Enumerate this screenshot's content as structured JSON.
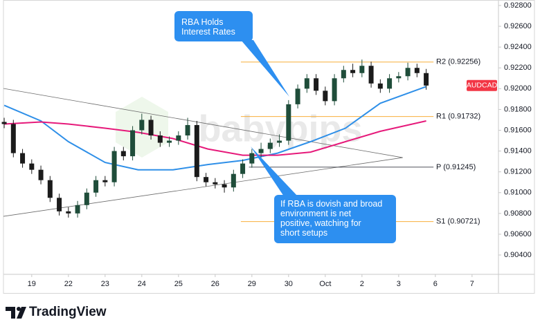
{
  "chart_data": {
    "type": "candlestick",
    "symbol": "AUDCAD",
    "watermark": "babypips",
    "branding": "TradingView",
    "xlim": [
      -0.77,
      12.72
    ],
    "xticks": [
      {
        "value": 0,
        "label": "19"
      },
      {
        "value": 1,
        "label": "22"
      },
      {
        "value": 2,
        "label": "23"
      },
      {
        "value": 3,
        "label": "24"
      },
      {
        "value": 4,
        "label": "25"
      },
      {
        "value": 5,
        "label": "26"
      },
      {
        "value": 6,
        "label": "29"
      },
      {
        "value": 7,
        "label": "30"
      },
      {
        "value": 8,
        "label": "Oct"
      },
      {
        "value": 9,
        "label": "2"
      },
      {
        "value": 10,
        "label": "3"
      },
      {
        "value": 11,
        "label": "6"
      },
      {
        "value": 12,
        "label": "7"
      }
    ],
    "ylim": [
      0.90214,
      0.92853
    ],
    "yticks": [
      {
        "value": 0.904,
        "label": "0.90400"
      },
      {
        "value": 0.906,
        "label": "0.90600"
      },
      {
        "value": 0.908,
        "label": "0.90800"
      },
      {
        "value": 0.91,
        "label": "0.91000"
      },
      {
        "value": 0.912,
        "label": "0.91200"
      },
      {
        "value": 0.914,
        "label": "0.91400"
      },
      {
        "value": 0.916,
        "label": "0.91600"
      },
      {
        "value": 0.918,
        "label": "0.91800"
      },
      {
        "value": 0.92,
        "label": "0.92000"
      },
      {
        "value": 0.922,
        "label": "0.92200"
      },
      {
        "value": 0.924,
        "label": "0.92400"
      },
      {
        "value": 0.926,
        "label": "0.92600"
      },
      {
        "value": 0.928,
        "label": "0.92800"
      }
    ],
    "grid": false,
    "up_color": "#1f4d3a",
    "down_color": "#1b1b1b",
    "x": [
      -0.75,
      -0.5,
      -0.25,
      0,
      0.25,
      0.5,
      0.75,
      1,
      1.25,
      1.5,
      1.75,
      2,
      2.25,
      2.5,
      2.75,
      3,
      3.25,
      3.5,
      3.75,
      4,
      4.25,
      4.5,
      4.75,
      5,
      5.25,
      5.5,
      5.75,
      6,
      6.25,
      6.5,
      6.75,
      7,
      7.25,
      7.5,
      7.75,
      8,
      8.25,
      8.5,
      8.75,
      9,
      9.25,
      9.5,
      9.75,
      10,
      10.25,
      10.5,
      10.75
    ],
    "open": [
      0.9168,
      0.9166,
      0.9138,
      0.9128,
      0.9122,
      0.9112,
      0.9095,
      0.9082,
      0.908,
      0.9088,
      0.91,
      0.9112,
      0.911,
      0.914,
      0.9135,
      0.916,
      0.917,
      0.9155,
      0.9148,
      0.915,
      0.9155,
      0.9165,
      0.9115,
      0.911,
      0.9108,
      0.9105,
      0.9118,
      0.9128,
      0.9138,
      0.9142,
      0.9148,
      0.915,
      0.9185,
      0.92,
      0.921,
      0.9198,
      0.9188,
      0.921,
      0.9218,
      0.9215,
      0.9222,
      0.9205,
      0.92,
      0.921,
      0.9212,
      0.922,
      0.9215
    ],
    "high": [
      0.9172,
      0.917,
      0.9142,
      0.9132,
      0.9126,
      0.9116,
      0.9099,
      0.9086,
      0.9092,
      0.9104,
      0.9116,
      0.9116,
      0.9144,
      0.9144,
      0.9164,
      0.9176,
      0.9174,
      0.9159,
      0.9154,
      0.9159,
      0.9172,
      0.9169,
      0.9119,
      0.9114,
      0.9112,
      0.9122,
      0.9132,
      0.9142,
      0.9148,
      0.9152,
      0.9156,
      0.9189,
      0.9204,
      0.9214,
      0.9214,
      0.9202,
      0.9214,
      0.9222,
      0.9224,
      0.9228,
      0.9226,
      0.9209,
      0.9214,
      0.9216,
      0.9225,
      0.9224,
      0.9219
    ],
    "low": [
      0.9162,
      0.9134,
      0.9124,
      0.9118,
      0.9108,
      0.9091,
      0.9078,
      0.9076,
      0.9076,
      0.9084,
      0.9096,
      0.9106,
      0.9106,
      0.9131,
      0.9131,
      0.9156,
      0.9151,
      0.9144,
      0.9144,
      0.9146,
      0.9151,
      0.9111,
      0.9106,
      0.9104,
      0.91,
      0.9101,
      0.9114,
      0.9124,
      0.9134,
      0.9138,
      0.9144,
      0.9146,
      0.9181,
      0.9196,
      0.9194,
      0.9184,
      0.9184,
      0.9206,
      0.9211,
      0.9211,
      0.9201,
      0.9196,
      0.9196,
      0.9206,
      0.9208,
      0.9211,
      0.9199
    ],
    "close": [
      0.9166,
      0.9138,
      0.9128,
      0.9122,
      0.9112,
      0.9095,
      0.9082,
      0.908,
      0.9088,
      0.91,
      0.9112,
      0.911,
      0.914,
      0.9135,
      0.916,
      0.917,
      0.9155,
      0.9148,
      0.915,
      0.9155,
      0.9165,
      0.9115,
      0.911,
      0.9108,
      0.9105,
      0.9118,
      0.9128,
      0.9138,
      0.9142,
      0.9148,
      0.915,
      0.9185,
      0.92,
      0.921,
      0.9198,
      0.9188,
      0.921,
      0.9218,
      0.9215,
      0.9222,
      0.9205,
      0.92,
      0.921,
      0.9212,
      0.922,
      0.9215,
      0.9203
    ],
    "ma_x": [
      -0.75,
      0.25,
      1,
      2,
      2.9,
      3.85,
      4.8,
      5.75,
      6.7,
      7.6,
      8.55,
      9.5,
      10.75
    ],
    "moving_averages": [
      {
        "color": "#2e8fe8",
        "values": [
          0.9184,
          0.9169,
          0.9149,
          0.9129,
          0.9122,
          0.9122,
          0.9127,
          0.9131,
          0.9138,
          0.9149,
          0.9162,
          0.9186,
          0.9202
        ]
      },
      {
        "color": "#e6197a",
        "values": [
          0.9166,
          0.9168,
          0.9166,
          0.9162,
          0.9158,
          0.9152,
          0.9142,
          0.9136,
          0.9136,
          0.9139,
          0.9149,
          0.9159,
          0.9169
        ]
      }
    ],
    "trendlines": [
      {
        "x": [
          -0.77,
          10.11
        ],
        "values": [
          0.92002,
          0.91337
        ]
      },
      {
        "x": [
          -0.77,
          10.11
        ],
        "values": [
          0.90772,
          0.91337
        ]
      }
    ],
    "levels": [
      {
        "label": "R2 (0.92256)",
        "value": 0.92256,
        "from": 5.7,
        "color": "#f7a21b"
      },
      {
        "label": "R1 (0.91732)",
        "value": 0.91732,
        "from": 5.7,
        "color": "#f7a21b"
      },
      {
        "label": "P (0.91245)",
        "value": 0.91245,
        "from": 5.92,
        "color": "#131722"
      },
      {
        "label": "S1 (0.90721)",
        "value": 0.90721,
        "from": 5.7,
        "color": "#f7a21b"
      }
    ],
    "annotations": [
      {
        "lines": [
          "RBA Holds",
          "Interest Rates"
        ]
      },
      {
        "lines": [
          "If RBA is dovish and broad",
          "environment is net",
          "positive, watching for",
          "short setups"
        ]
      }
    ]
  }
}
